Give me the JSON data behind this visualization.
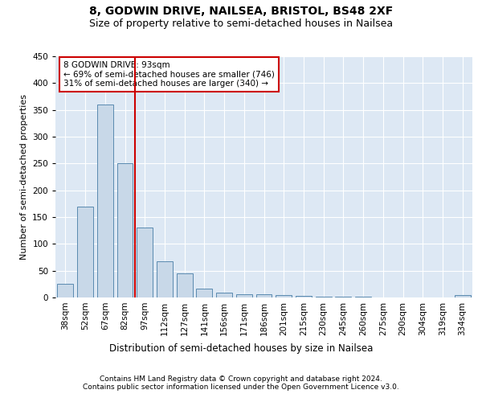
{
  "title1": "8, GODWIN DRIVE, NAILSEA, BRISTOL, BS48 2XF",
  "title2": "Size of property relative to semi-detached houses in Nailsea",
  "xlabel": "Distribution of semi-detached houses by size in Nailsea",
  "ylabel": "Number of semi-detached properties",
  "categories": [
    "38sqm",
    "52sqm",
    "67sqm",
    "82sqm",
    "97sqm",
    "112sqm",
    "127sqm",
    "141sqm",
    "156sqm",
    "171sqm",
    "186sqm",
    "201sqm",
    "215sqm",
    "230sqm",
    "245sqm",
    "260sqm",
    "275sqm",
    "290sqm",
    "304sqm",
    "319sqm",
    "334sqm"
  ],
  "values": [
    25,
    170,
    360,
    250,
    130,
    68,
    45,
    17,
    9,
    6,
    6,
    5,
    3,
    2,
    2,
    1,
    0,
    0,
    0,
    0,
    4
  ],
  "bar_color": "#c8d8e8",
  "bar_edge_color": "#5a8ab0",
  "vline_color": "#cc0000",
  "annotation_text": "8 GODWIN DRIVE: 93sqm\n← 69% of semi-detached houses are smaller (746)\n31% of semi-detached houses are larger (340) →",
  "annotation_box_color": "#ffffff",
  "annotation_box_edge": "#cc0000",
  "ylim": [
    0,
    450
  ],
  "yticks": [
    0,
    50,
    100,
    150,
    200,
    250,
    300,
    350,
    400,
    450
  ],
  "grid_color": "#ccddee",
  "background_color": "#dde8f4",
  "footer1": "Contains HM Land Registry data © Crown copyright and database right 2024.",
  "footer2": "Contains public sector information licensed under the Open Government Licence v3.0.",
  "title1_fontsize": 10,
  "title2_fontsize": 9,
  "xlabel_fontsize": 8.5,
  "ylabel_fontsize": 8,
  "tick_fontsize": 7.5,
  "annotation_fontsize": 7.5,
  "footer_fontsize": 6.5
}
